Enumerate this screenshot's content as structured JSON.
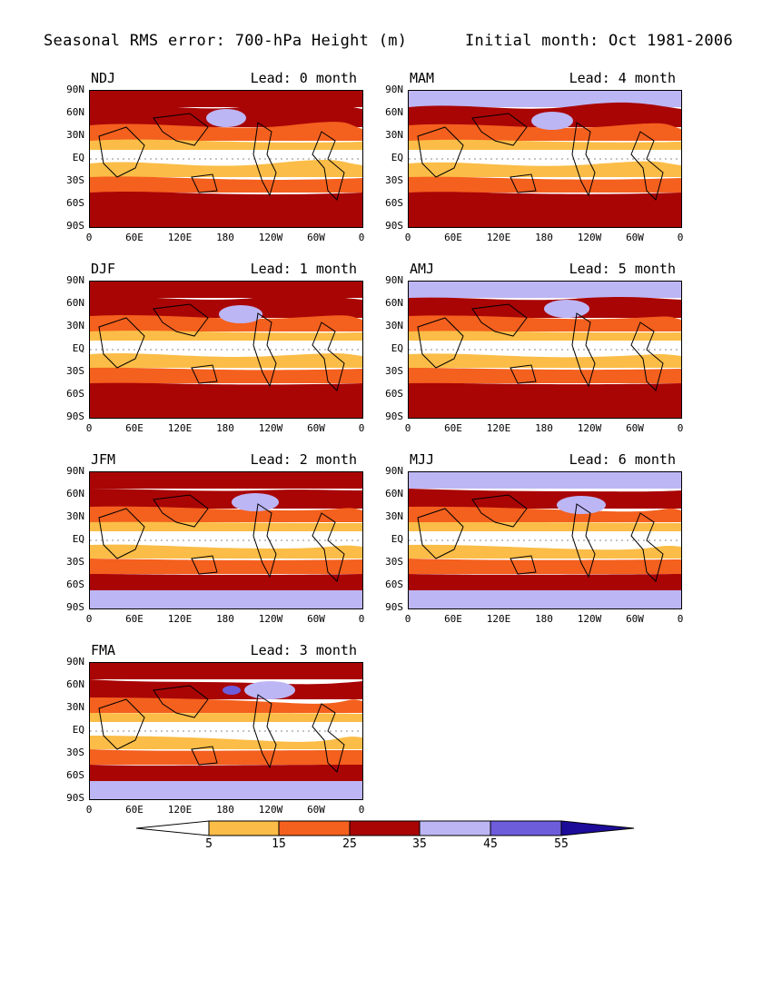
{
  "title_left": "Seasonal RMS error: 700-hPa Height (m)",
  "title_right": "Initial month: Oct 1981-2006",
  "y_ticks": [
    "90N",
    "60N",
    "30N",
    "EQ",
    "30S",
    "60S",
    "90S"
  ],
  "x_ticks": [
    "0",
    "60E",
    "120E",
    "180",
    "120W",
    "60W",
    "0"
  ],
  "panels": [
    {
      "season": "NDJ",
      "lead": "Lead: 0 month"
    },
    {
      "season": "MAM",
      "lead": "Lead: 4 month"
    },
    {
      "season": "DJF",
      "lead": "Lead: 1 month"
    },
    {
      "season": "AMJ",
      "lead": "Lead: 5 month"
    },
    {
      "season": "JFM",
      "lead": "Lead: 2 month"
    },
    {
      "season": "MJJ",
      "lead": "Lead: 6 month"
    },
    {
      "season": "FMA",
      "lead": "Lead: 3 month"
    }
  ],
  "colorbar": {
    "labels": [
      "5",
      "15",
      "25",
      "35",
      "45",
      "55"
    ],
    "colors": {
      "lt5": "#ffffff",
      "c5_15": "#fbbd47",
      "c15_25": "#f4601e",
      "c25_35": "#e8360f",
      "c35": "#a90505",
      "c45": "#bdb6f5",
      "c55": "#6d5ddb",
      "gt55": "#1d0c9a"
    }
  }
}
